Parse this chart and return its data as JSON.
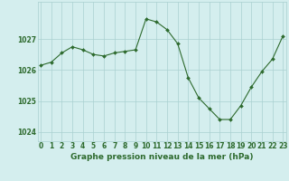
{
  "x": [
    0,
    1,
    2,
    3,
    4,
    5,
    6,
    7,
    8,
    9,
    10,
    11,
    12,
    13,
    14,
    15,
    16,
    17,
    18,
    19,
    20,
    21,
    22,
    23
  ],
  "y": [
    1026.15,
    1026.25,
    1026.55,
    1026.75,
    1026.65,
    1026.5,
    1026.45,
    1026.55,
    1026.6,
    1026.65,
    1027.65,
    1027.55,
    1027.3,
    1026.85,
    1025.75,
    1025.1,
    1024.75,
    1024.4,
    1024.4,
    1024.85,
    1025.45,
    1025.95,
    1026.35,
    1027.1
  ],
  "line_color": "#2d6a2d",
  "marker_color": "#2d6a2d",
  "bg_color": "#d4eeee",
  "grid_color": "#aad0d0",
  "xlabel": "Graphe pression niveau de la mer (hPa)",
  "ylabel_ticks": [
    1024,
    1025,
    1026,
    1027
  ],
  "ylim": [
    1023.7,
    1028.2
  ],
  "xlim": [
    -0.3,
    23.3
  ],
  "xlabel_fontsize": 6.5,
  "tick_fontsize": 5.5
}
